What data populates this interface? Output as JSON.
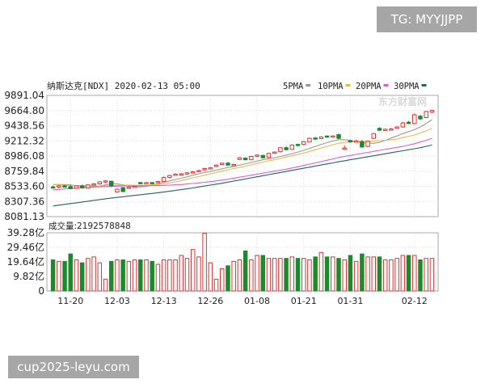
{
  "overlay": {
    "tg_badge": "TG: MYYJJPP",
    "site_watermark": "cup2025-leyu.com"
  },
  "chart_data": {
    "type": "candlestick",
    "title": "纳斯达克[NDX] 2020-02-13 05:00",
    "legend": [
      {
        "label": "5PMA",
        "color": "#999999"
      },
      {
        "label": "10PMA",
        "color": "#e8b84a"
      },
      {
        "label": "20PMA",
        "color": "#d65ed6"
      },
      {
        "label": "30PMA",
        "color": "#226655"
      }
    ],
    "logo_text": "东方财富网",
    "price_axis": {
      "ylim": [
        8081.13,
        9891.04
      ],
      "ticks": [
        "9891.04",
        "9664.80",
        "9438.56",
        "9212.32",
        "8986.08",
        "8759.84",
        "8533.60",
        "8307.36",
        "8081.13"
      ]
    },
    "volume_label": "成交量:2192578848",
    "volume_axis": {
      "ylim": [
        0,
        39.28
      ],
      "unit": "亿",
      "ticks": [
        "39.28亿",
        "29.46亿",
        "19.64亿",
        "9.82亿",
        "0"
      ]
    },
    "x_labels": [
      "11-20",
      "12-03",
      "12-13",
      "12-26",
      "01-08",
      "01-21",
      "01-31",
      "02-12"
    ],
    "up_color": "#e03030",
    "down_color": "#1a8a2a",
    "candles": [
      {
        "o": 8525,
        "h": 8545,
        "l": 8500,
        "c": 8520,
        "v": 21,
        "up": false
      },
      {
        "o": 8520,
        "h": 8555,
        "l": 8505,
        "c": 8540,
        "v": 20,
        "up": true
      },
      {
        "o": 8540,
        "h": 8555,
        "l": 8515,
        "c": 8530,
        "v": 20,
        "up": false
      },
      {
        "o": 8530,
        "h": 8560,
        "l": 8490,
        "c": 8500,
        "v": 25,
        "up": false
      },
      {
        "o": 8505,
        "h": 8550,
        "l": 8495,
        "c": 8540,
        "v": 21,
        "up": true
      },
      {
        "o": 8540,
        "h": 8560,
        "l": 8500,
        "c": 8510,
        "v": 19,
        "up": false
      },
      {
        "o": 8510,
        "h": 8565,
        "l": 8505,
        "c": 8555,
        "v": 22,
        "up": true
      },
      {
        "o": 8555,
        "h": 8580,
        "l": 8540,
        "c": 8570,
        "v": 23,
        "up": true
      },
      {
        "o": 8570,
        "h": 8610,
        "l": 8560,
        "c": 8600,
        "v": 19,
        "up": true
      },
      {
        "o": 8600,
        "h": 8625,
        "l": 8580,
        "c": 8615,
        "v": 8,
        "up": true
      },
      {
        "o": 8610,
        "h": 8615,
        "l": 8520,
        "c": 8540,
        "v": 20,
        "up": false
      },
      {
        "o": 8490,
        "h": 8500,
        "l": 8435,
        "c": 8450,
        "v": 21,
        "up": true
      },
      {
        "o": 8455,
        "h": 8520,
        "l": 8450,
        "c": 8515,
        "v": 21,
        "up": false
      },
      {
        "o": 8515,
        "h": 8535,
        "l": 8500,
        "c": 8520,
        "v": 20,
        "up": true
      },
      {
        "o": 8520,
        "h": 8545,
        "l": 8510,
        "c": 8535,
        "v": 21,
        "up": true
      },
      {
        "o": 8585,
        "h": 8600,
        "l": 8570,
        "c": 8590,
        "v": 21,
        "up": false
      },
      {
        "o": 8590,
        "h": 8600,
        "l": 8575,
        "c": 8580,
        "v": 21,
        "up": true
      },
      {
        "o": 8580,
        "h": 8595,
        "l": 8570,
        "c": 8590,
        "v": 20,
        "up": false
      },
      {
        "o": 8595,
        "h": 8615,
        "l": 8585,
        "c": 8605,
        "v": 18,
        "up": true
      },
      {
        "o": 8605,
        "h": 8680,
        "l": 8600,
        "c": 8665,
        "v": 21,
        "up": true
      },
      {
        "o": 8665,
        "h": 8705,
        "l": 8650,
        "c": 8695,
        "v": 21,
        "up": true
      },
      {
        "o": 8700,
        "h": 8725,
        "l": 8690,
        "c": 8715,
        "v": 21,
        "up": true
      },
      {
        "o": 8715,
        "h": 8730,
        "l": 8700,
        "c": 8720,
        "v": 24,
        "up": true
      },
      {
        "o": 8720,
        "h": 8745,
        "l": 8705,
        "c": 8735,
        "v": 22,
        "up": true
      },
      {
        "o": 8735,
        "h": 8760,
        "l": 8725,
        "c": 8750,
        "v": 28,
        "up": true
      },
      {
        "o": 8770,
        "h": 8780,
        "l": 8760,
        "c": 8765,
        "v": 23,
        "up": true
      },
      {
        "o": 8780,
        "h": 8810,
        "l": 8770,
        "c": 8800,
        "v": 39,
        "up": true
      },
      {
        "o": 8800,
        "h": 8820,
        "l": 8790,
        "c": 8810,
        "v": 19,
        "up": true
      },
      {
        "o": 8830,
        "h": 8860,
        "l": 8820,
        "c": 8850,
        "v": 8,
        "up": true
      },
      {
        "o": 8860,
        "h": 8885,
        "l": 8850,
        "c": 8880,
        "v": 15,
        "up": true
      },
      {
        "o": 8880,
        "h": 8900,
        "l": 8840,
        "c": 8850,
        "v": 17,
        "up": false
      },
      {
        "o": 8855,
        "h": 8870,
        "l": 8845,
        "c": 8860,
        "v": 20,
        "up": true
      },
      {
        "o": 8935,
        "h": 8970,
        "l": 8925,
        "c": 8960,
        "v": 21,
        "up": true
      },
      {
        "o": 8955,
        "h": 8965,
        "l": 8920,
        "c": 8930,
        "v": 27,
        "up": false
      },
      {
        "o": 8930,
        "h": 8990,
        "l": 8925,
        "c": 8980,
        "v": 21,
        "up": true
      },
      {
        "o": 8985,
        "h": 9010,
        "l": 8970,
        "c": 9000,
        "v": 24,
        "up": true
      },
      {
        "o": 8995,
        "h": 9005,
        "l": 8950,
        "c": 8960,
        "v": 24,
        "up": false
      },
      {
        "o": 8965,
        "h": 9035,
        "l": 8955,
        "c": 9025,
        "v": 22,
        "up": true
      },
      {
        "o": 9035,
        "h": 9055,
        "l": 9020,
        "c": 9045,
        "v": 22,
        "up": true
      },
      {
        "o": 9050,
        "h": 9120,
        "l": 9040,
        "c": 9110,
        "v": 22,
        "up": true
      },
      {
        "o": 9110,
        "h": 9130,
        "l": 9070,
        "c": 9080,
        "v": 22,
        "up": false
      },
      {
        "o": 9085,
        "h": 9160,
        "l": 9080,
        "c": 9150,
        "v": 23,
        "up": true
      },
      {
        "o": 9150,
        "h": 9170,
        "l": 9130,
        "c": 9160,
        "v": 22,
        "up": false
      },
      {
        "o": 9160,
        "h": 9210,
        "l": 9150,
        "c": 9200,
        "v": 22,
        "up": true
      },
      {
        "o": 9195,
        "h": 9260,
        "l": 9190,
        "c": 9250,
        "v": 21,
        "up": true
      },
      {
        "o": 9255,
        "h": 9270,
        "l": 9240,
        "c": 9250,
        "v": 23,
        "up": false
      },
      {
        "o": 9245,
        "h": 9280,
        "l": 9240,
        "c": 9270,
        "v": 26,
        "up": true
      },
      {
        "o": 9270,
        "h": 9290,
        "l": 9260,
        "c": 9285,
        "v": 23,
        "up": false
      },
      {
        "o": 9285,
        "h": 9295,
        "l": 9265,
        "c": 9275,
        "v": 23,
        "up": true
      },
      {
        "o": 9305,
        "h": 9320,
        "l": 9240,
        "c": 9250,
        "v": 22,
        "up": false
      },
      {
        "o": 9100,
        "h": 9145,
        "l": 9080,
        "c": 9105,
        "v": 21,
        "up": true
      },
      {
        "o": 9195,
        "h": 9225,
        "l": 9185,
        "c": 9215,
        "v": 24,
        "up": false
      },
      {
        "o": 9210,
        "h": 9230,
        "l": 9190,
        "c": 9200,
        "v": 20,
        "up": true
      },
      {
        "o": 9200,
        "h": 9230,
        "l": 9110,
        "c": 9120,
        "v": 25,
        "up": false
      },
      {
        "o": 9130,
        "h": 9215,
        "l": 9120,
        "c": 9205,
        "v": 23,
        "up": true
      },
      {
        "o": 9250,
        "h": 9330,
        "l": 9240,
        "c": 9320,
        "v": 23,
        "up": true
      },
      {
        "o": 9400,
        "h": 9415,
        "l": 9360,
        "c": 9370,
        "v": 23,
        "up": false
      },
      {
        "o": 9380,
        "h": 9395,
        "l": 9370,
        "c": 9385,
        "v": 21,
        "up": true
      },
      {
        "o": 9390,
        "h": 9405,
        "l": 9380,
        "c": 9385,
        "v": 21,
        "up": true
      },
      {
        "o": 9400,
        "h": 9430,
        "l": 9395,
        "c": 9420,
        "v": 22,
        "up": true
      },
      {
        "o": 9420,
        "h": 9495,
        "l": 9410,
        "c": 9480,
        "v": 24,
        "up": true
      },
      {
        "o": 9490,
        "h": 9510,
        "l": 9465,
        "c": 9470,
        "v": 24,
        "up": false
      },
      {
        "o": 9470,
        "h": 9620,
        "l": 9460,
        "c": 9600,
        "v": 24,
        "up": true
      },
      {
        "o": 9580,
        "h": 9600,
        "l": 9520,
        "c": 9540,
        "v": 21,
        "up": false
      },
      {
        "o": 9560,
        "h": 9660,
        "l": 9550,
        "c": 9650,
        "v": 22,
        "up": true
      },
      {
        "o": 9640,
        "h": 9680,
        "l": 9625,
        "c": 9665,
        "v": 22,
        "up": true
      }
    ],
    "ma5": [
      8560,
      8560,
      8560,
      8555,
      8540,
      8535,
      8530,
      8530,
      8540,
      8555,
      8575,
      8570,
      8555,
      8540,
      8525,
      8525,
      8535,
      8550,
      8570,
      8595,
      8615,
      8635,
      8655,
      8675,
      8700,
      8720,
      8740,
      8755,
      8775,
      8795,
      8815,
      8830,
      8850,
      8870,
      8890,
      8910,
      8930,
      8945,
      8960,
      8980,
      9000,
      9020,
      9045,
      9070,
      9100,
      9130,
      9160,
      9185,
      9210,
      9230,
      9230,
      9220,
      9200,
      9185,
      9180,
      9175,
      9190,
      9220,
      9255,
      9285,
      9320,
      9350,
      9380,
      9420,
      9470,
      9530
    ],
    "ma10": [
      8560,
      8555,
      8550,
      8548,
      8545,
      8545,
      8543,
      8540,
      8538,
      8540,
      8545,
      8548,
      8550,
      8550,
      8548,
      8548,
      8550,
      8555,
      8560,
      8570,
      8585,
      8600,
      8620,
      8640,
      8660,
      8680,
      8700,
      8720,
      8740,
      8760,
      8780,
      8800,
      8815,
      8835,
      8855,
      8875,
      8895,
      8915,
      8930,
      8950,
      8970,
      8990,
      9010,
      9030,
      9055,
      9080,
      9105,
      9130,
      9155,
      9175,
      9190,
      9200,
      9205,
      9205,
      9210,
      9210,
      9215,
      9220,
      9230,
      9240,
      9260,
      9280,
      9300,
      9330,
      9360,
      9400
    ],
    "ma20": [
      8480,
      8488,
      8495,
      8500,
      8505,
      8510,
      8515,
      8520,
      8525,
      8530,
      8533,
      8536,
      8538,
      8540,
      8540,
      8541,
      8542,
      8544,
      8546,
      8548,
      8550,
      8555,
      8560,
      8568,
      8576,
      8584,
      8594,
      8604,
      8615,
      8628,
      8640,
      8655,
      8670,
      8685,
      8700,
      8715,
      8730,
      8745,
      8760,
      8775,
      8790,
      8808,
      8826,
      8845,
      8864,
      8883,
      8903,
      8923,
      8943,
      8963,
      8980,
      8995,
      9010,
      9025,
      9040,
      9055,
      9070,
      9085,
      9100,
      9115,
      9130,
      9150,
      9170,
      9195,
      9220,
      9250
    ],
    "ma30": [
      8240,
      8252,
      8264,
      8276,
      8288,
      8300,
      8312,
      8324,
      8336,
      8348,
      8358,
      8368,
      8378,
      8388,
      8398,
      8408,
      8418,
      8428,
      8438,
      8448,
      8460,
      8472,
      8484,
      8496,
      8510,
      8524,
      8538,
      8552,
      8566,
      8580,
      8596,
      8612,
      8628,
      8644,
      8660,
      8676,
      8692,
      8708,
      8724,
      8740,
      8756,
      8772,
      8788,
      8804,
      8820,
      8836,
      8852,
      8868,
      8884,
      8900,
      8915,
      8930,
      8945,
      8960,
      8975,
      8990,
      9005,
      9020,
      9035,
      9050,
      9065,
      9080,
      9095,
      9110,
      9130,
      9150
    ]
  }
}
